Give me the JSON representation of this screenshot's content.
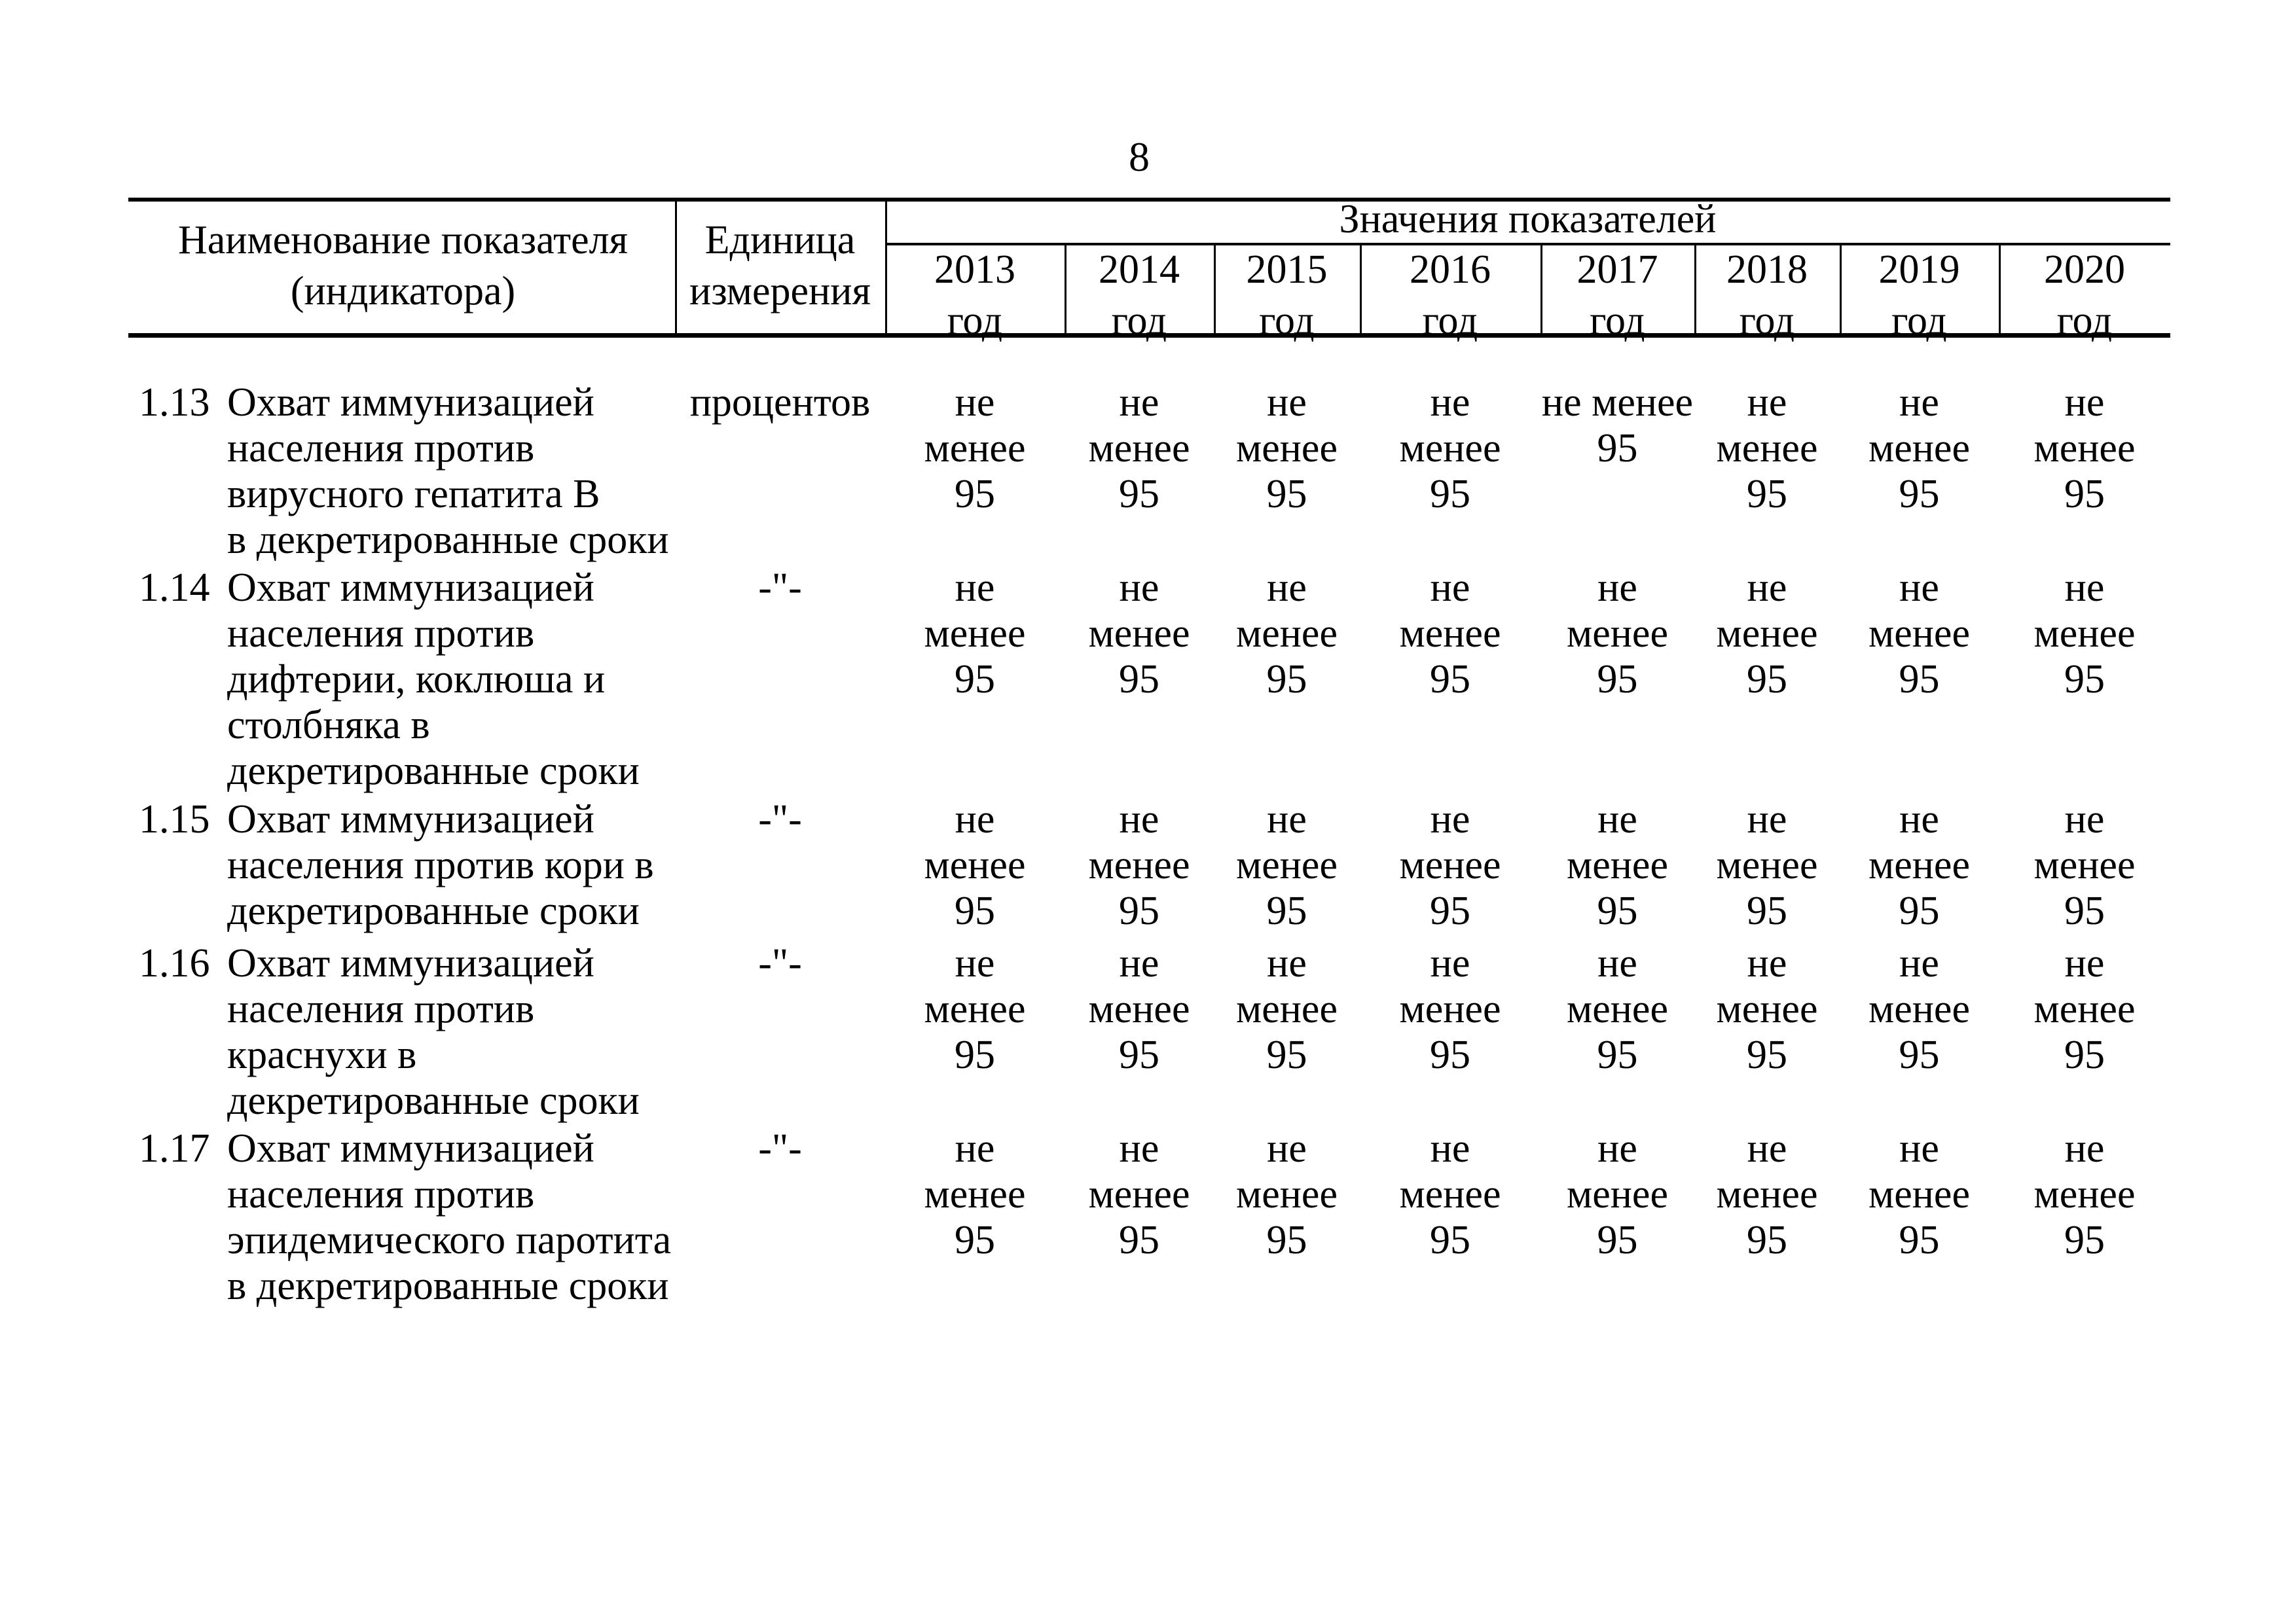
{
  "page_number": "8",
  "table": {
    "header": {
      "name_column": [
        "Наименование показателя",
        "(индикатора)"
      ],
      "unit_column": [
        "Единица",
        "измерения"
      ],
      "values_caption": "Значения показателей",
      "year_columns": [
        {
          "year": "2013",
          "suffix": "год"
        },
        {
          "year": "2014",
          "suffix": "год"
        },
        {
          "year": "2015",
          "suffix": "год"
        },
        {
          "year": "2016",
          "suffix": "год"
        },
        {
          "year": "2017",
          "suffix": "год"
        },
        {
          "year": "2018",
          "suffix": "год"
        },
        {
          "year": "2019",
          "suffix": "год"
        },
        {
          "year": "2020",
          "suffix": "год"
        }
      ]
    },
    "rows": [
      {
        "num": "1.13",
        "name_lines": [
          "Охват иммунизацией",
          "населения против",
          "вирусного гепатита В",
          "в декретированные сроки"
        ],
        "unit": "процентов",
        "values": [
          [
            "не",
            "менее",
            "95"
          ],
          [
            "не",
            "менее",
            "95"
          ],
          [
            "не",
            "менее",
            "95"
          ],
          [
            "не",
            "менее",
            "95"
          ],
          [
            "",
            "не менее",
            "95"
          ],
          [
            "не",
            "менее",
            "95"
          ],
          [
            "не",
            "менее",
            "95"
          ],
          [
            "не",
            "менее",
            "95"
          ]
        ]
      },
      {
        "num": "1.14",
        "name_lines": [
          "Охват иммунизацией",
          "населения против",
          "дифтерии, коклюша и",
          "столбняка в",
          "декретированные сроки"
        ],
        "unit": "-\"-",
        "values": [
          [
            "не",
            "менее",
            "95"
          ],
          [
            "не",
            "менее",
            "95"
          ],
          [
            "не",
            "менее",
            "95"
          ],
          [
            "не",
            "менее",
            "95"
          ],
          [
            "не",
            "менее",
            "95"
          ],
          [
            "не",
            "менее",
            "95"
          ],
          [
            "не",
            "менее",
            "95"
          ],
          [
            "не",
            "менее",
            "95"
          ]
        ]
      },
      {
        "num": "1.15",
        "name_lines": [
          "Охват иммунизацией",
          "населения против кори в",
          "декретированные сроки"
        ],
        "unit": "-\"-",
        "values": [
          [
            "не",
            "менее",
            "95"
          ],
          [
            "не",
            "менее",
            "95"
          ],
          [
            "не",
            "менее",
            "95"
          ],
          [
            "не",
            "менее",
            "95"
          ],
          [
            "не",
            "менее",
            "95"
          ],
          [
            "не",
            "менее",
            "95"
          ],
          [
            "не",
            "менее",
            "95"
          ],
          [
            "не",
            "менее",
            "95"
          ]
        ]
      },
      {
        "num": "1.16",
        "name_lines": [
          "Охват иммунизацией",
          "населения против",
          "краснухи в",
          "декретированные сроки"
        ],
        "unit": "-\"-",
        "values": [
          [
            "не",
            "менее",
            "95"
          ],
          [
            "не",
            "менее",
            "95"
          ],
          [
            "не",
            "менее",
            "95"
          ],
          [
            "не",
            "менее",
            "95"
          ],
          [
            "не",
            "менее",
            "95"
          ],
          [
            "не",
            "менее",
            "95"
          ],
          [
            "не",
            "менее",
            "95"
          ],
          [
            "не",
            "менее",
            "95"
          ]
        ]
      },
      {
        "num": "1.17",
        "name_lines": [
          "Охват иммунизацией",
          "населения против",
          "эпидемического паротита",
          "в декретированные сроки"
        ],
        "unit": "-\"-",
        "values": [
          [
            "не",
            "менее",
            "95"
          ],
          [
            "не",
            "менее",
            "95"
          ],
          [
            "не",
            "менее",
            "95"
          ],
          [
            "не",
            "менее",
            "95"
          ],
          [
            "не",
            "менее",
            "95"
          ],
          [
            "не",
            "менее",
            "95"
          ],
          [
            "не",
            "менее",
            "95"
          ],
          [
            "не",
            "менее",
            "95"
          ]
        ]
      }
    ]
  }
}
